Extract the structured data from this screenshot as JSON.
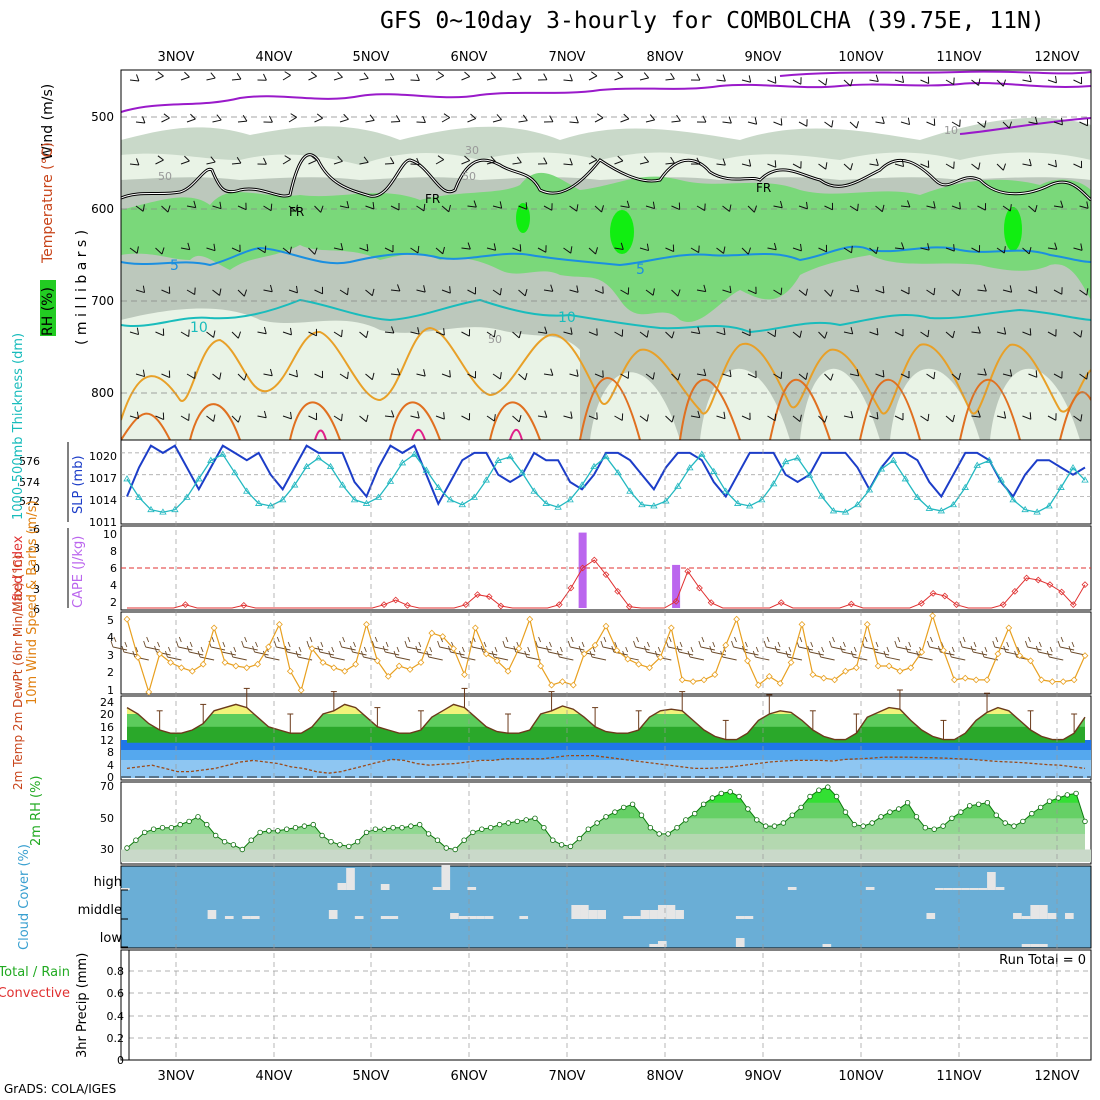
{
  "title": "GFS 0~10day 3-hourly for COMBOLCHA (39.75E, 11N)",
  "footer": "GrADS: COLA/IGES",
  "colors": {
    "rh_light": "#e9f3e6",
    "rh_mid": "#c9d9c9",
    "rh_dark": "#bcc8bc",
    "rh_green": "#7ad87a",
    "rh_bright": "#11ee11",
    "temp_purple": "#9a1aca",
    "temp_blue": "#1b8fe0",
    "temp_cyan": "#19bcbc",
    "temp_orange": "#e8a028",
    "temp_darkorange": "#e07020",
    "freezing": "#000000",
    "slp": "#1c3dc8",
    "thickness": "#22b8c0",
    "cape": "#bb66ee",
    "lifted_index": "#e03030",
    "wind10m": "#e8a020",
    "cloud_bg": "#6aaed6",
    "cloud_bar": "#e6e6e6"
  },
  "chart_data": [
    {
      "panel": "upper_air",
      "type": "heatmap",
      "ylabel_parts": [
        "RH (%)",
        "Temperature (°C)",
        "Wind (m/s)"
      ],
      "ylabel_unit": "( m i l l i b a r s )",
      "y_ticks": [
        500,
        600,
        700,
        800
      ],
      "ylim": [
        440,
        850
      ],
      "x_ticks": [
        "3NOV",
        "4NOV",
        "5NOV",
        "6NOV",
        "7NOV",
        "8NOV",
        "9NOV",
        "10NOV",
        "11NOV",
        "12NOV"
      ],
      "contour_labels": [
        "5",
        "5",
        "10",
        "10",
        "FR",
        "FR",
        "FR",
        "50",
        "50",
        "50",
        "30",
        "10"
      ],
      "freezing_level_label": "FR"
    },
    {
      "panel": "slp_thickness",
      "type": "line",
      "ylabel_left": "1000-500mb Thickness (dm)",
      "ylabel_right": "SLP (mb)",
      "y_ticks_left": [
        572,
        574,
        576
      ],
      "y_ticks_right": [
        1011,
        1014,
        1017,
        1020
      ],
      "ylim_left": [
        571,
        577.5
      ],
      "ylim_right": [
        1010.5,
        1021.5
      ],
      "series": [
        {
          "name": "SLP (mb)",
          "values": [
            1014,
            1018,
            1021,
            1020,
            1021,
            1018,
            1015,
            1018,
            1021,
            1020,
            1019,
            1020,
            1017,
            1015,
            1018,
            1021,
            1020,
            1020,
            1020,
            1016,
            1014,
            1018,
            1021,
            1020,
            1021,
            1017,
            1013,
            1016,
            1019,
            1020,
            1020,
            1017,
            1016,
            1017,
            1020,
            1019,
            1019,
            1016,
            1015,
            1017,
            1020,
            1020,
            1019,
            1017,
            1015,
            1018,
            1020,
            1020,
            1019,
            1016,
            1014,
            1017,
            1020,
            1020,
            1020,
            1017,
            1016,
            1017,
            1020,
            1020,
            1020,
            1018,
            1015,
            1018,
            1020,
            1020,
            1019,
            1016,
            1014,
            1017,
            1020,
            1020,
            1019,
            1016,
            1014,
            1017,
            1019,
            1019,
            1018,
            1017,
            1018
          ]
        },
        {
          "name": "1000-500mb Thickness (dm)",
          "values": [
            574.5,
            573,
            572,
            571.8,
            572,
            573,
            574.5,
            576,
            576.5,
            575,
            573.5,
            572.5,
            572.3,
            572.8,
            574,
            575.5,
            576.2,
            575.5,
            574,
            572.8,
            572.5,
            573,
            574.3,
            575.8,
            576.5,
            575.2,
            573.8,
            572.8,
            572.4,
            573,
            574.4,
            576,
            576.3,
            575,
            573.5,
            572.5,
            572.2,
            572.8,
            574,
            575.5,
            576.3,
            575,
            573.5,
            572.4,
            572.3,
            572.7,
            573.9,
            575.4,
            576.5,
            575.1,
            573.5,
            572.5,
            572.3,
            572.8,
            574.1,
            575.9,
            576.2,
            574.8,
            573.1,
            571.9,
            571.8,
            572.4,
            573.6,
            575.3,
            576,
            574.5,
            573,
            572.1,
            571.9,
            572.4,
            573.8,
            575.6,
            576,
            574.4,
            572.8,
            572,
            571.8,
            572.3,
            573.8,
            575.4,
            574.4
          ]
        }
      ]
    },
    {
      "panel": "cape_li",
      "type": "bar",
      "ylabel_left": "Lifted Index",
      "ylabel_right": "CAPE (J/kg)",
      "y_ticks_left": [
        "-6",
        "-3",
        "0",
        "3",
        "6"
      ],
      "y_ticks_right": [
        "10",
        "8",
        "6",
        "4",
        "2"
      ],
      "cape_spikes": [
        {
          "time_index": 39,
          "value": 10.5
        },
        {
          "time_index": 47,
          "value": 6
        }
      ],
      "series": [
        {
          "name": "Lifted Index",
          "values": [
            6,
            6,
            6,
            6,
            6,
            5.5,
            6,
            6,
            6,
            6,
            5.6,
            6,
            6,
            6,
            6,
            6,
            6,
            6,
            6,
            6,
            6,
            6,
            5.5,
            4.8,
            5.6,
            6,
            6,
            6,
            6,
            5.5,
            4,
            4.3,
            5.7,
            6,
            6,
            6,
            6,
            5.5,
            3,
            0,
            -1.2,
            1,
            3.5,
            5.8,
            6,
            6,
            6,
            5,
            0.5,
            3,
            5.2,
            6,
            6,
            6,
            6,
            6,
            5.2,
            6,
            6,
            6,
            6,
            6,
            5.4,
            6,
            6,
            6,
            6,
            6,
            5.3,
            3.8,
            4.2,
            5.5,
            6,
            6,
            6,
            5.5,
            3.5,
            1.5,
            1.8,
            2.5,
            3.6,
            5.5,
            2.5
          ]
        }
      ]
    },
    {
      "panel": "wind10m",
      "type": "line",
      "ylabel": "10m Wind Speed & Barbs (m/s)",
      "y_ticks": [
        1,
        2,
        3,
        4,
        5
      ],
      "ylim": [
        0.8,
        5.3
      ],
      "series": [
        {
          "name": "10m Wind Speed",
          "values": [
            5,
            2.8,
            0.8,
            3,
            2.5,
            2.2,
            2,
            2.4,
            4.5,
            2.5,
            2.3,
            2.2,
            2.4,
            3.4,
            4.7,
            2,
            0.9,
            3.3,
            2.5,
            2.2,
            2,
            2.4,
            4.7,
            2.6,
            1.7,
            2.3,
            2.1,
            2.5,
            4.2,
            4,
            3.3,
            1.8,
            4.5,
            3,
            2.6,
            2,
            3.3,
            5,
            2.3,
            1.2,
            1.4,
            1.2,
            3,
            3.5,
            4.6,
            3.2,
            2.7,
            2.4,
            2.2,
            2.8,
            4.5,
            1.5,
            1.4,
            1.5,
            1.8,
            3.5,
            5,
            2.6,
            1.2,
            1.7,
            1.3,
            2.5,
            4.7,
            1.8,
            1.6,
            1.5,
            2,
            2.2,
            4.7,
            2.3,
            2.3,
            2,
            2.2,
            3.1,
            5.2,
            3.2,
            1.5,
            1.6,
            1.5,
            1.5,
            3,
            4.5,
            2.9,
            2.6,
            1.5,
            1.4,
            1.4,
            1.5,
            2.9
          ]
        }
      ]
    },
    {
      "panel": "temperature",
      "type": "area",
      "ylabel": "2m Temp 2m DewPt (6hr Min/Max) (°C)",
      "y_ticks": [
        0,
        4,
        8,
        12,
        16,
        20,
        24
      ],
      "ylim": [
        0,
        25
      ],
      "series": [
        {
          "name": "2m Temp",
          "values": [
            22,
            20,
            17,
            15,
            14,
            14,
            15,
            17,
            21,
            22,
            23,
            22,
            19,
            16,
            15,
            14,
            14,
            16,
            20,
            21,
            23,
            22,
            19,
            16,
            15,
            14,
            14,
            15,
            19,
            21,
            23,
            22,
            19,
            16,
            14.5,
            14,
            14,
            15,
            20,
            21,
            22.5,
            21.5,
            19,
            16,
            14.5,
            14,
            14,
            15,
            19,
            21,
            21.5,
            21,
            18,
            15,
            13,
            12,
            12,
            14,
            18,
            20,
            21,
            20.5,
            18,
            15,
            13,
            12,
            12,
            14,
            19,
            20.5,
            22,
            21.5,
            18,
            15,
            13,
            12,
            12,
            14,
            18,
            20.5,
            22,
            21,
            18,
            15,
            13,
            12,
            12,
            14,
            19
          ]
        },
        {
          "name": "2m DewPt",
          "values": [
            3,
            3.5,
            4,
            3,
            2,
            2,
            2.5,
            3,
            4,
            5,
            5.5,
            5,
            4.5,
            3.5,
            3,
            2,
            1.5,
            2,
            3,
            4,
            5,
            5.8,
            5.5,
            4.5,
            4,
            4.3,
            4.5,
            5,
            5.5,
            5.5,
            6,
            6,
            6,
            6,
            6.5,
            7,
            7,
            7,
            6.5,
            6,
            5.5,
            5,
            4.5,
            4,
            3.5,
            3,
            3,
            3.2,
            3.5,
            4,
            4.5,
            5,
            5.3,
            5.5,
            5.5,
            5.5,
            5.3,
            5.8,
            6,
            6.2,
            6.5,
            6.5,
            6.5,
            6.4,
            6.3,
            6.2,
            6,
            5.8,
            5.5,
            5.2,
            5,
            4.8,
            4.5,
            4.2,
            4,
            3.5,
            3
          ]
        }
      ]
    },
    {
      "panel": "rh2m",
      "type": "area",
      "ylabel": "2m RH (%)",
      "y_ticks": [
        30,
        50,
        70
      ],
      "ylim": [
        22,
        72
      ],
      "series": [
        {
          "name": "2m RH",
          "values": [
            31,
            36,
            41,
            43,
            44,
            44,
            46,
            48,
            51,
            46,
            39,
            35,
            33,
            30,
            36,
            41,
            42,
            42,
            43,
            44,
            45,
            46,
            39,
            35,
            33,
            32,
            35,
            41,
            43,
            43,
            44,
            44,
            45,
            46,
            40,
            36,
            31,
            30,
            36,
            41,
            43,
            44,
            46,
            47,
            48,
            49,
            50,
            44,
            36,
            33,
            32,
            37,
            43,
            47,
            51,
            54,
            57,
            59,
            52,
            44,
            40,
            40,
            44,
            49,
            53,
            59,
            63,
            66,
            67,
            64,
            56,
            49,
            45,
            45,
            47,
            52,
            57,
            64,
            68,
            70,
            64,
            54,
            46,
            45,
            47,
            51,
            54,
            56,
            60,
            51,
            44,
            43,
            45,
            50,
            54,
            58,
            59,
            60,
            52,
            47,
            45,
            48,
            53,
            57,
            61,
            63,
            65,
            66,
            48
          ]
        }
      ]
    },
    {
      "panel": "cloud_cover",
      "type": "bar",
      "ylabel": "Cloud Cover (%)",
      "y_ticks": [
        "high",
        "middle",
        "low"
      ],
      "high_bars": [
        {
          "time_index": 0,
          "value": 2
        },
        {
          "time_index": 25,
          "value": 7
        },
        {
          "time_index": 26,
          "value": 22
        },
        {
          "time_index": 30,
          "value": 6
        },
        {
          "time_index": 36,
          "value": 3
        },
        {
          "time_index": 37,
          "value": 25
        },
        {
          "time_index": 40,
          "value": 3
        },
        {
          "time_index": 77,
          "value": 3
        },
        {
          "time_index": 86,
          "value": 3
        },
        {
          "time_index": 94,
          "value": 2
        },
        {
          "time_index": 95,
          "value": 2
        },
        {
          "time_index": 96,
          "value": 2
        },
        {
          "time_index": 97,
          "value": 2
        },
        {
          "time_index": 98,
          "value": 2
        },
        {
          "time_index": 99,
          "value": 2
        },
        {
          "time_index": 100,
          "value": 18
        },
        {
          "time_index": 101,
          "value": 3
        }
      ],
      "middle_bars": [
        {
          "time_index": 10,
          "value": 9
        },
        {
          "time_index": 12,
          "value": 3
        },
        {
          "time_index": 14,
          "value": 3
        },
        {
          "time_index": 15,
          "value": 3
        },
        {
          "time_index": 24,
          "value": 9
        },
        {
          "time_index": 27,
          "value": 3
        },
        {
          "time_index": 30,
          "value": 3
        },
        {
          "time_index": 31,
          "value": 3
        },
        {
          "time_index": 38,
          "value": 6
        },
        {
          "time_index": 39,
          "value": 3
        },
        {
          "time_index": 40,
          "value": 3
        },
        {
          "time_index": 41,
          "value": 3
        },
        {
          "time_index": 42,
          "value": 3
        },
        {
          "time_index": 46,
          "value": 3
        },
        {
          "time_index": 52,
          "value": 14
        },
        {
          "time_index": 53,
          "value": 14
        },
        {
          "time_index": 54,
          "value": 9
        },
        {
          "time_index": 55,
          "value": 9
        },
        {
          "time_index": 58,
          "value": 3
        },
        {
          "time_index": 59,
          "value": 3
        },
        {
          "time_index": 60,
          "value": 9
        },
        {
          "time_index": 61,
          "value": 9
        },
        {
          "time_index": 62,
          "value": 14
        },
        {
          "time_index": 63,
          "value": 14
        },
        {
          "time_index": 64,
          "value": 9
        },
        {
          "time_index": 71,
          "value": 3
        },
        {
          "time_index": 72,
          "value": 3
        },
        {
          "time_index": 93,
          "value": 6
        },
        {
          "time_index": 103,
          "value": 6
        },
        {
          "time_index": 104,
          "value": 3
        },
        {
          "time_index": 105,
          "value": 14
        },
        {
          "time_index": 106,
          "value": 14
        },
        {
          "time_index": 107,
          "value": 6
        },
        {
          "time_index": 109,
          "value": 6
        }
      ],
      "low_bars": [
        {
          "time_index": 61,
          "value": 3
        },
        {
          "time_index": 62,
          "value": 6
        },
        {
          "time_index": 71,
          "value": 9
        },
        {
          "time_index": 81,
          "value": 3
        },
        {
          "time_index": 104,
          "value": 3
        },
        {
          "time_index": 105,
          "value": 3
        },
        {
          "time_index": 106,
          "value": 3
        }
      ]
    },
    {
      "panel": "precip",
      "type": "bar",
      "ylabel": "3hr Precip (mm)",
      "legend": [
        "Total / Rain",
        "Convective"
      ],
      "y_ticks": [
        "0",
        "0.2",
        "0.4",
        "0.6",
        "0.8"
      ],
      "ylim": [
        0,
        0.95
      ],
      "annotation": "Run Total = 0",
      "values": []
    }
  ]
}
